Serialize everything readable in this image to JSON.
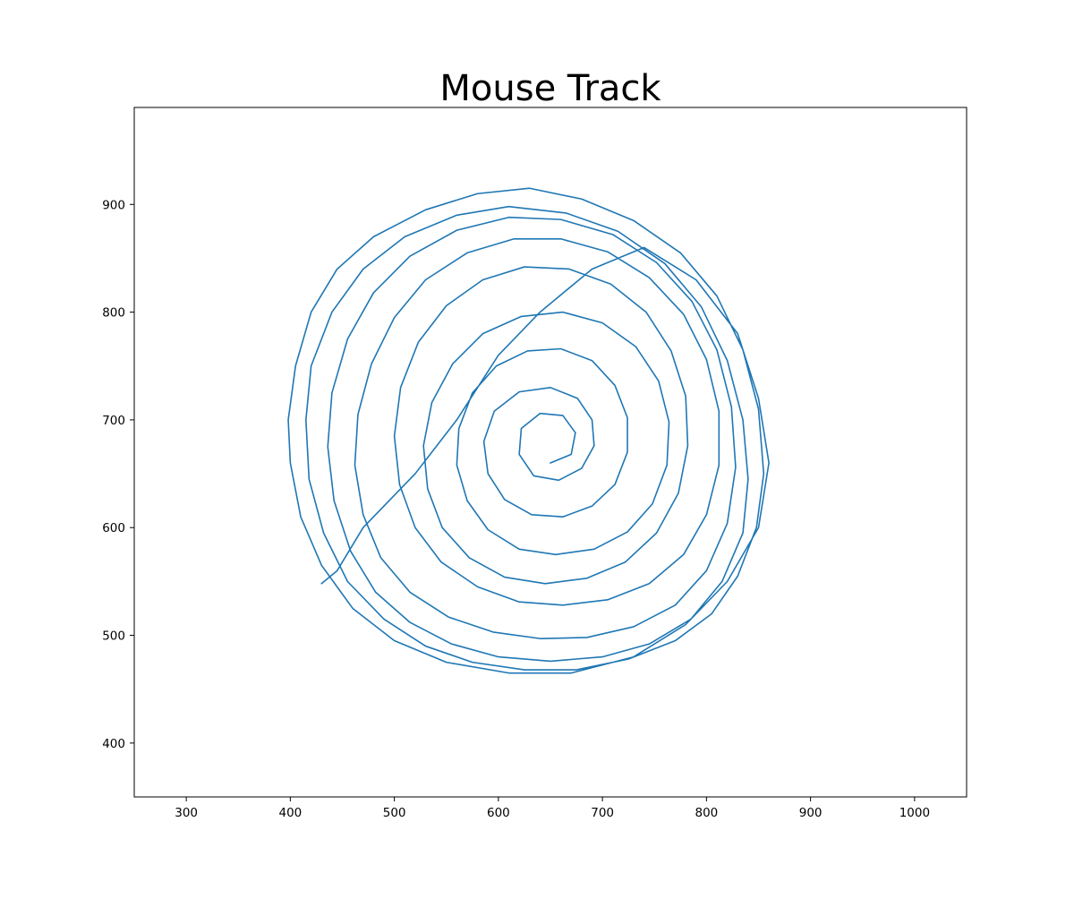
{
  "chart_data": {
    "type": "line",
    "title": "Mouse Track",
    "xlabel": "",
    "ylabel": "",
    "xlim": [
      250,
      1050
    ],
    "ylim": [
      350,
      990
    ],
    "x_ticks": [
      "300",
      "400",
      "500",
      "600",
      "700",
      "800",
      "900",
      "1000"
    ],
    "y_ticks": [
      "400",
      "500",
      "600",
      "700",
      "800",
      "900"
    ],
    "grid": false,
    "legend": "none",
    "line_color": "#1f77b4",
    "track_description_points_note": "",
    "series": [
      {
        "values": [
          [
            430,
            548
          ],
          [
            445,
            560
          ],
          [
            470,
            600
          ],
          [
            520,
            650
          ],
          [
            560,
            700
          ],
          [
            600,
            760
          ],
          [
            640,
            800
          ],
          [
            690,
            840
          ],
          [
            740,
            860
          ],
          [
            790,
            830
          ],
          [
            830,
            780
          ],
          [
            850,
            720
          ],
          [
            860,
            660
          ],
          [
            850,
            600
          ],
          [
            820,
            550
          ],
          [
            780,
            510
          ],
          [
            730,
            480
          ],
          [
            670,
            465
          ],
          [
            610,
            465
          ],
          [
            550,
            475
          ],
          [
            500,
            495
          ],
          [
            460,
            525
          ],
          [
            430,
            565
          ],
          [
            410,
            610
          ],
          [
            400,
            660
          ],
          [
            398,
            700
          ],
          [
            405,
            750
          ],
          [
            420,
            800
          ],
          [
            445,
            840
          ],
          [
            480,
            870
          ],
          [
            530,
            895
          ],
          [
            580,
            910
          ],
          [
            630,
            915
          ],
          [
            680,
            905
          ],
          [
            730,
            885
          ],
          [
            775,
            855
          ],
          [
            810,
            815
          ],
          [
            835,
            765
          ],
          [
            850,
            710
          ],
          [
            855,
            650
          ],
          [
            848,
            600
          ],
          [
            830,
            555
          ],
          [
            805,
            520
          ],
          [
            770,
            495
          ],
          [
            725,
            478
          ],
          [
            675,
            468
          ],
          [
            625,
            468
          ],
          [
            575,
            475
          ],
          [
            530,
            490
          ],
          [
            490,
            515
          ],
          [
            455,
            550
          ],
          [
            432,
            595
          ],
          [
            418,
            645
          ],
          [
            415,
            700
          ],
          [
            420,
            750
          ],
          [
            440,
            800
          ],
          [
            470,
            840
          ],
          [
            510,
            870
          ],
          [
            560,
            890
          ],
          [
            610,
            898
          ],
          [
            665,
            892
          ],
          [
            715,
            875
          ],
          [
            760,
            845
          ],
          [
            795,
            805
          ],
          [
            820,
            755
          ],
          [
            835,
            700
          ],
          [
            840,
            645
          ],
          [
            835,
            595
          ],
          [
            815,
            550
          ],
          [
            785,
            515
          ],
          [
            745,
            492
          ],
          [
            700,
            480
          ],
          [
            650,
            476
          ],
          [
            600,
            480
          ],
          [
            555,
            492
          ],
          [
            515,
            512
          ],
          [
            482,
            540
          ],
          [
            458,
            578
          ],
          [
            442,
            625
          ],
          [
            436,
            675
          ],
          [
            440,
            725
          ],
          [
            455,
            775
          ],
          [
            480,
            818
          ],
          [
            515,
            852
          ],
          [
            560,
            876
          ],
          [
            610,
            888
          ],
          [
            660,
            886
          ],
          [
            710,
            872
          ],
          [
            752,
            846
          ],
          [
            786,
            810
          ],
          [
            810,
            765
          ],
          [
            824,
            712
          ],
          [
            828,
            656
          ],
          [
            820,
            604
          ],
          [
            800,
            560
          ],
          [
            770,
            528
          ],
          [
            730,
            508
          ],
          [
            685,
            498
          ],
          [
            640,
            497
          ],
          [
            595,
            503
          ],
          [
            552,
            517
          ],
          [
            515,
            540
          ],
          [
            487,
            572
          ],
          [
            470,
            612
          ],
          [
            462,
            658
          ],
          [
            465,
            705
          ],
          [
            478,
            752
          ],
          [
            500,
            795
          ],
          [
            530,
            830
          ],
          [
            570,
            855
          ],
          [
            615,
            868
          ],
          [
            660,
            868
          ],
          [
            705,
            856
          ],
          [
            745,
            832
          ],
          [
            778,
            798
          ],
          [
            800,
            756
          ],
          [
            812,
            708
          ],
          [
            812,
            658
          ],
          [
            800,
            612
          ],
          [
            778,
            575
          ],
          [
            745,
            548
          ],
          [
            705,
            533
          ],
          [
            662,
            528
          ],
          [
            620,
            531
          ],
          [
            580,
            545
          ],
          [
            545,
            568
          ],
          [
            520,
            600
          ],
          [
            505,
            640
          ],
          [
            500,
            685
          ],
          [
            506,
            730
          ],
          [
            523,
            772
          ],
          [
            550,
            806
          ],
          [
            585,
            830
          ],
          [
            625,
            842
          ],
          [
            668,
            840
          ],
          [
            708,
            826
          ],
          [
            742,
            800
          ],
          [
            766,
            764
          ],
          [
            780,
            722
          ],
          [
            782,
            676
          ],
          [
            773,
            632
          ],
          [
            752,
            595
          ],
          [
            722,
            568
          ],
          [
            685,
            553
          ],
          [
            645,
            548
          ],
          [
            606,
            554
          ],
          [
            572,
            572
          ],
          [
            546,
            600
          ],
          [
            532,
            636
          ],
          [
            528,
            676
          ],
          [
            536,
            716
          ],
          [
            556,
            752
          ],
          [
            585,
            780
          ],
          [
            622,
            796
          ],
          [
            662,
            800
          ],
          [
            700,
            790
          ],
          [
            732,
            768
          ],
          [
            754,
            736
          ],
          [
            764,
            698
          ],
          [
            762,
            658
          ],
          [
            748,
            622
          ],
          [
            724,
            596
          ],
          [
            692,
            580
          ],
          [
            655,
            575
          ],
          [
            620,
            580
          ],
          [
            590,
            598
          ],
          [
            570,
            625
          ],
          [
            560,
            658
          ],
          [
            562,
            692
          ],
          [
            575,
            725
          ],
          [
            598,
            750
          ],
          [
            628,
            764
          ],
          [
            660,
            766
          ],
          [
            690,
            755
          ],
          [
            712,
            732
          ],
          [
            724,
            702
          ],
          [
            724,
            670
          ],
          [
            712,
            640
          ],
          [
            690,
            620
          ],
          [
            662,
            610
          ],
          [
            632,
            612
          ],
          [
            606,
            626
          ],
          [
            590,
            650
          ],
          [
            586,
            680
          ],
          [
            596,
            708
          ],
          [
            620,
            726
          ],
          [
            650,
            730
          ],
          [
            676,
            720
          ],
          [
            690,
            700
          ],
          [
            692,
            676
          ],
          [
            680,
            655
          ],
          [
            658,
            644
          ],
          [
            634,
            648
          ],
          [
            620,
            668
          ],
          [
            622,
            692
          ],
          [
            640,
            706
          ],
          [
            662,
            704
          ],
          [
            674,
            688
          ],
          [
            670,
            668
          ],
          [
            650,
            660
          ]
        ]
      }
    ]
  }
}
